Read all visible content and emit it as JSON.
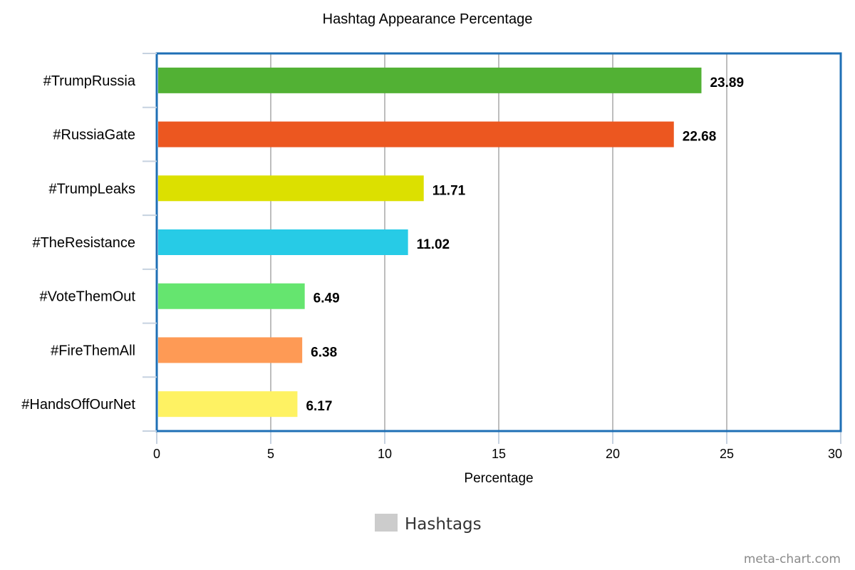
{
  "chart_data": {
    "type": "bar",
    "orientation": "horizontal",
    "title": "Hashtag Appearance Percentage",
    "xlabel": "Percentage",
    "ylabel": "",
    "categories": [
      "#TrumpRussia",
      "#RussiaGate",
      "#TrumpLeaks",
      "#TheResistance",
      "#VoteThemOut",
      "#FireThemAll",
      "#HandsOffOurNet"
    ],
    "values": [
      23.89,
      22.68,
      11.71,
      11.02,
      6.49,
      6.38,
      6.17
    ],
    "data_labels": [
      "23.89",
      "22.68",
      "11.71",
      "11.02",
      "6.49",
      "6.38",
      "6.17"
    ],
    "bar_colors": [
      "#52b134",
      "#ec5720",
      "#dce000",
      "#27cbe6",
      "#65e56f",
      "#fe9a55",
      "#fef263"
    ],
    "xlim": [
      0,
      30
    ],
    "xticks": [
      0,
      5,
      10,
      15,
      20,
      25,
      30
    ],
    "tick_labels": [
      "0",
      "5",
      "10",
      "15",
      "20",
      "25",
      "30"
    ],
    "grid": true,
    "legend": {
      "entries": [
        {
          "name": "Hashtags",
          "color": "#cccccc"
        }
      ],
      "placement": "bottom-center"
    },
    "frame_color": "#1e6fb5"
  },
  "watermark": "meta-chart.com"
}
